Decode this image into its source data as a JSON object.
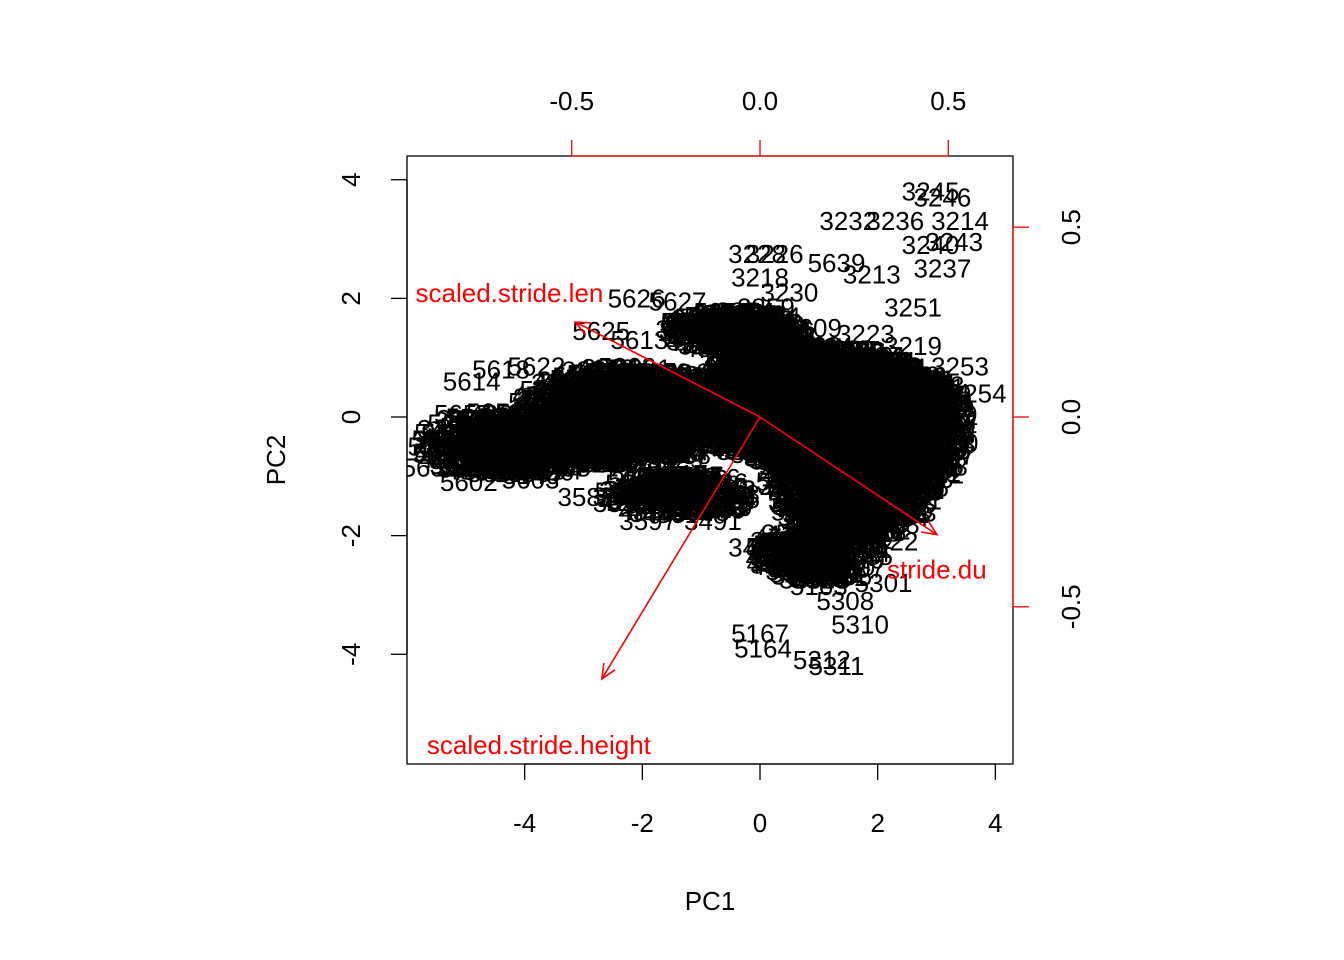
{
  "colors": {
    "points": "#000000",
    "variables": "#ff0000",
    "axes": "#000000",
    "secondary_axes": "#ff0000"
  },
  "chart_data": {
    "type": "scatter",
    "subtype": "biplot",
    "title": "",
    "xlabel": "PC1",
    "ylabel": "PC2",
    "xlim": [
      -6,
      4.3
    ],
    "ylim": [
      -5.85,
      4.4
    ],
    "x_ticks": [
      "-4",
      "-2",
      "0",
      "2",
      "4"
    ],
    "y_ticks": [
      "-4",
      "-2",
      "0",
      "2",
      "4"
    ],
    "secondary_x_ticks": [
      "-0.5",
      "0.0",
      "0.5"
    ],
    "secondary_y_ticks": [
      "-0.5",
      "0.0",
      "0.5"
    ],
    "secondary_lim": [
      -0.9,
      0.65
    ],
    "grid": false,
    "legend": "none",
    "variables": [
      {
        "name": "scaled.stride.len",
        "loading": [
          -0.49,
          0.25
        ]
      },
      {
        "name": "stride.du",
        "loading": [
          0.47,
          -0.31
        ]
      },
      {
        "name": "scaled.stride.height",
        "loading": [
          -0.42,
          -0.69
        ]
      }
    ],
    "labeled_points": [
      {
        "label": "3245",
        "x": 2.9,
        "y": 3.8
      },
      {
        "label": "3246",
        "x": 3.1,
        "y": 3.7
      },
      {
        "label": "3232",
        "x": 1.5,
        "y": 3.3
      },
      {
        "label": "3236",
        "x": 2.3,
        "y": 3.3
      },
      {
        "label": "3214",
        "x": 3.4,
        "y": 3.3
      },
      {
        "label": "3240",
        "x": 2.9,
        "y": 2.9
      },
      {
        "label": "3243",
        "x": 3.3,
        "y": 2.95
      },
      {
        "label": "3228",
        "x": -0.05,
        "y": 2.75
      },
      {
        "label": "3226",
        "x": 0.25,
        "y": 2.75
      },
      {
        "label": "3237",
        "x": 3.1,
        "y": 2.5
      },
      {
        "label": "5639",
        "x": 1.3,
        "y": 2.6
      },
      {
        "label": "3213",
        "x": 1.9,
        "y": 2.4
      },
      {
        "label": "3218",
        "x": 0.0,
        "y": 2.35
      },
      {
        "label": "3230",
        "x": 0.5,
        "y": 2.1
      },
      {
        "label": "5626",
        "x": -2.1,
        "y": 2.0
      },
      {
        "label": "5627",
        "x": -1.4,
        "y": 1.95
      },
      {
        "label": "3251",
        "x": 2.6,
        "y": 1.85
      },
      {
        "label": "2859",
        "x": 0.1,
        "y": 1.85
      },
      {
        "label": "5625",
        "x": -2.7,
        "y": 1.45
      },
      {
        "label": "5613",
        "x": -2.05,
        "y": 1.3
      },
      {
        "label": "5608",
        "x": -1.2,
        "y": 1.6
      },
      {
        "label": "5609",
        "x": 0.9,
        "y": 1.5
      },
      {
        "label": "3223",
        "x": 1.8,
        "y": 1.4
      },
      {
        "label": "3219",
        "x": 2.6,
        "y": 1.2
      },
      {
        "label": "3253",
        "x": 3.4,
        "y": 0.85
      },
      {
        "label": "3254",
        "x": 3.7,
        "y": 0.4
      },
      {
        "label": "3256",
        "x": 3.1,
        "y": 0.0
      },
      {
        "label": "5614",
        "x": -4.9,
        "y": 0.6
      },
      {
        "label": "5618",
        "x": -4.4,
        "y": 0.8
      },
      {
        "label": "5622",
        "x": -3.8,
        "y": 0.85
      },
      {
        "label": "5657",
        "x": -5.05,
        "y": 0.05
      },
      {
        "label": "5660",
        "x": -5.5,
        "y": -0.5
      },
      {
        "label": "5655",
        "x": -5.6,
        "y": -0.85
      },
      {
        "label": "5602",
        "x": -4.95,
        "y": -1.1
      },
      {
        "label": "5603",
        "x": -3.9,
        "y": -1.05
      },
      {
        "label": "3587",
        "x": -2.95,
        "y": -1.35
      },
      {
        "label": "3590",
        "x": -2.35,
        "y": -1.45
      },
      {
        "label": "3597",
        "x": -1.9,
        "y": -1.75
      },
      {
        "label": "3491",
        "x": -0.8,
        "y": -1.75
      },
      {
        "label": "3425",
        "x": -0.05,
        "y": -2.2
      },
      {
        "label": "3421",
        "x": 0.4,
        "y": -2.3
      },
      {
        "label": "3422",
        "x": 2.2,
        "y": -2.1
      },
      {
        "label": "5301",
        "x": 2.1,
        "y": -2.8
      },
      {
        "label": "5163",
        "x": 1.0,
        "y": -2.85
      },
      {
        "label": "5308",
        "x": 1.45,
        "y": -3.1
      },
      {
        "label": "5310",
        "x": 1.7,
        "y": -3.5
      },
      {
        "label": "5167",
        "x": 0.0,
        "y": -3.65
      },
      {
        "label": "5164",
        "x": 0.05,
        "y": -3.9
      },
      {
        "label": "5312",
        "x": 1.05,
        "y": -4.1
      },
      {
        "label": "5311",
        "x": 1.3,
        "y": -4.2
      }
    ],
    "dense_clusters": [
      {
        "x": 0.9,
        "y": 0.2,
        "rx": 2.0,
        "ry": 1.0,
        "n": 900
      },
      {
        "x": 1.6,
        "y": -0.9,
        "rx": 1.2,
        "ry": 1.1,
        "n": 500
      },
      {
        "x": -2.3,
        "y": 0.0,
        "rx": 1.6,
        "ry": 0.85,
        "n": 450
      },
      {
        "x": -4.2,
        "y": -0.45,
        "rx": 1.3,
        "ry": 0.55,
        "n": 220
      },
      {
        "x": 2.7,
        "y": -0.2,
        "rx": 0.55,
        "ry": 0.9,
        "n": 200
      },
      {
        "x": -0.4,
        "y": 1.45,
        "rx": 0.9,
        "ry": 0.35,
        "n": 140
      },
      {
        "x": 1.0,
        "y": -2.3,
        "rx": 0.8,
        "ry": 0.45,
        "n": 120
      },
      {
        "x": -1.4,
        "y": -1.3,
        "rx": 1.0,
        "ry": 0.35,
        "n": 110
      }
    ]
  }
}
